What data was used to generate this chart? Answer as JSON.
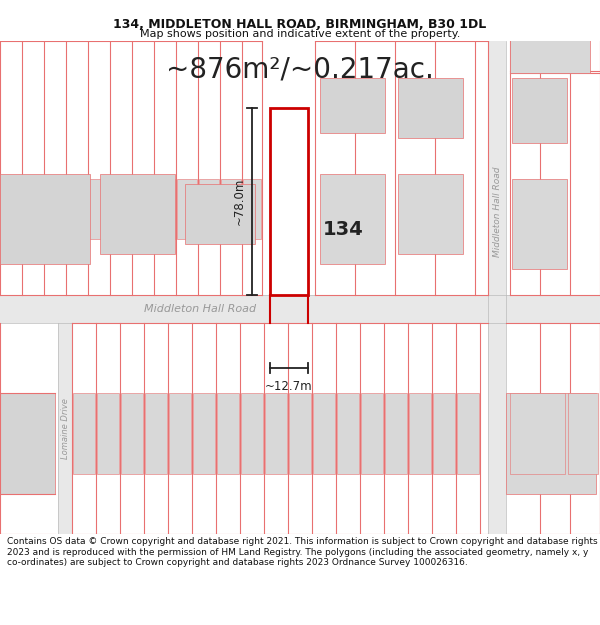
{
  "title_line1": "134, MIDDLETON HALL ROAD, BIRMINGHAM, B30 1DL",
  "title_line2": "Map shows position and indicative extent of the property.",
  "area_text": "~876m²/~0.217ac.",
  "width_label": "~12.7m",
  "height_label": "~78.0m",
  "number_label": "134",
  "road_label_h": "Middleton Hall Road",
  "road_label_v": "Middleton Hall Road",
  "road_label_side": "Lomaine Drive",
  "footer_text": "Contains OS data © Crown copyright and database right 2021. This information is subject to Crown copyright and database rights 2023 and is reproduced with the permission of HM Land Registry. The polygons (including the associated geometry, namely x, y co-ordinates) are subject to Crown copyright and database rights 2023 Ordnance Survey 100026316.",
  "bg_color": "#ffffff",
  "map_bg": "#f0f0f0",
  "road_fill": "#e2e2e2",
  "plot_line": "#e87070",
  "building_fill": "#d8d8d8",
  "building_line": "#e87070",
  "property_fill": "#ffffff",
  "property_line": "#cc0000",
  "dim_color": "#222222",
  "text_color": "#333333",
  "road_text": "#999999",
  "title_fontsize": 9,
  "subtitle_fontsize": 8,
  "area_fontsize": 20,
  "footer_fontsize": 6.5
}
